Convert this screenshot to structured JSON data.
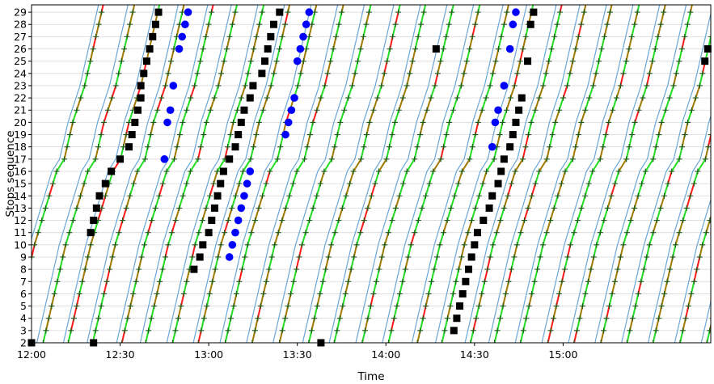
{
  "chart_data": {
    "type": "line",
    "title": "",
    "xlabel": "Time",
    "ylabel": "Stops sequence",
    "x_unit": "time of day (HH:MM)",
    "xlim": [
      "12:00",
      "15:50"
    ],
    "ylim": [
      2,
      29.6
    ],
    "x_ticks": [
      "12:00",
      "12:30",
      "13:00",
      "13:30",
      "14:00",
      "14:30",
      "15:00"
    ],
    "y_ticks": [
      2,
      3,
      4,
      5,
      6,
      7,
      8,
      9,
      10,
      11,
      12,
      13,
      14,
      15,
      16,
      17,
      18,
      19,
      20,
      21,
      22,
      23,
      24,
      25,
      26,
      27,
      28,
      29
    ],
    "grid": "horizontal",
    "legend": "none",
    "colors": {
      "planned": "#6aa6d6",
      "observed": "#22dd22",
      "delay": "#ff1a1a",
      "mixed": "#a07a00",
      "stop_mark": "#1a5a1a",
      "black_markers": "#000000",
      "blue_markers": "#0000ff"
    },
    "trip_start_times": [
      "11:53",
      "12:03",
      "12:12",
      "12:20",
      "12:30",
      "12:38",
      "12:47",
      "12:56",
      "13:05",
      "13:14",
      "13:23",
      "13:33",
      "13:42",
      "13:51",
      "14:00",
      "14:10",
      "14:18",
      "14:28",
      "14:36",
      "14:45",
      "14:54",
      "15:03",
      "15:12",
      "15:21",
      "15:30",
      "15:39",
      "15:48"
    ],
    "black_markers": [
      {
        "x": "12:00",
        "y": 2
      },
      {
        "x": "12:21",
        "y": 2
      },
      {
        "x": "13:38",
        "y": 2
      },
      {
        "x": "12:20",
        "y": 11
      },
      {
        "x": "12:21",
        "y": 12
      },
      {
        "x": "12:22",
        "y": 13
      },
      {
        "x": "12:23",
        "y": 14
      },
      {
        "x": "12:25",
        "y": 15
      },
      {
        "x": "12:27",
        "y": 16
      },
      {
        "x": "12:30",
        "y": 17
      },
      {
        "x": "12:33",
        "y": 18
      },
      {
        "x": "12:34",
        "y": 19
      },
      {
        "x": "12:35",
        "y": 20
      },
      {
        "x": "12:36",
        "y": 21
      },
      {
        "x": "12:37",
        "y": 22
      },
      {
        "x": "12:37",
        "y": 23
      },
      {
        "x": "12:38",
        "y": 24
      },
      {
        "x": "12:39",
        "y": 25
      },
      {
        "x": "12:40",
        "y": 26
      },
      {
        "x": "12:41",
        "y": 27
      },
      {
        "x": "12:42",
        "y": 28
      },
      {
        "x": "12:43",
        "y": 29
      },
      {
        "x": "12:55",
        "y": 8
      },
      {
        "x": "12:57",
        "y": 9
      },
      {
        "x": "12:58",
        "y": 10
      },
      {
        "x": "13:00",
        "y": 11
      },
      {
        "x": "13:01",
        "y": 12
      },
      {
        "x": "13:02",
        "y": 13
      },
      {
        "x": "13:03",
        "y": 14
      },
      {
        "x": "13:04",
        "y": 15
      },
      {
        "x": "13:05",
        "y": 16
      },
      {
        "x": "13:07",
        "y": 17
      },
      {
        "x": "13:09",
        "y": 18
      },
      {
        "x": "13:10",
        "y": 19
      },
      {
        "x": "13:11",
        "y": 20
      },
      {
        "x": "13:12",
        "y": 21
      },
      {
        "x": "13:14",
        "y": 22
      },
      {
        "x": "13:15",
        "y": 23
      },
      {
        "x": "13:18",
        "y": 24
      },
      {
        "x": "13:19",
        "y": 25
      },
      {
        "x": "13:20",
        "y": 26
      },
      {
        "x": "13:21",
        "y": 27
      },
      {
        "x": "13:22",
        "y": 28
      },
      {
        "x": "13:24",
        "y": 29
      },
      {
        "x": "14:17",
        "y": 26
      },
      {
        "x": "14:23",
        "y": 3
      },
      {
        "x": "14:24",
        "y": 4
      },
      {
        "x": "14:25",
        "y": 5
      },
      {
        "x": "14:26",
        "y": 6
      },
      {
        "x": "14:27",
        "y": 7
      },
      {
        "x": "14:28",
        "y": 8
      },
      {
        "x": "14:29",
        "y": 9
      },
      {
        "x": "14:30",
        "y": 10
      },
      {
        "x": "14:31",
        "y": 11
      },
      {
        "x": "14:33",
        "y": 12
      },
      {
        "x": "14:35",
        "y": 13
      },
      {
        "x": "14:36",
        "y": 14
      },
      {
        "x": "14:38",
        "y": 15
      },
      {
        "x": "14:39",
        "y": 16
      },
      {
        "x": "14:40",
        "y": 17
      },
      {
        "x": "14:42",
        "y": 18
      },
      {
        "x": "14:43",
        "y": 19
      },
      {
        "x": "14:44",
        "y": 20
      },
      {
        "x": "14:45",
        "y": 21
      },
      {
        "x": "14:46",
        "y": 22
      },
      {
        "x": "14:48",
        "y": 25
      },
      {
        "x": "14:49",
        "y": 28
      },
      {
        "x": "14:50",
        "y": 29
      },
      {
        "x": "15:48",
        "y": 25
      },
      {
        "x": "15:49",
        "y": 26
      }
    ],
    "blue_markers": [
      {
        "x": "12:45",
        "y": 17
      },
      {
        "x": "12:46",
        "y": 20
      },
      {
        "x": "12:47",
        "y": 21
      },
      {
        "x": "12:48",
        "y": 23
      },
      {
        "x": "12:50",
        "y": 26
      },
      {
        "x": "12:51",
        "y": 27
      },
      {
        "x": "12:52",
        "y": 28
      },
      {
        "x": "12:53",
        "y": 29
      },
      {
        "x": "13:07",
        "y": 9
      },
      {
        "x": "13:08",
        "y": 10
      },
      {
        "x": "13:09",
        "y": 11
      },
      {
        "x": "13:10",
        "y": 12
      },
      {
        "x": "13:11",
        "y": 13
      },
      {
        "x": "13:12",
        "y": 14
      },
      {
        "x": "13:13",
        "y": 15
      },
      {
        "x": "13:14",
        "y": 16
      },
      {
        "x": "13:26",
        "y": 19
      },
      {
        "x": "13:27",
        "y": 20
      },
      {
        "x": "13:28",
        "y": 21
      },
      {
        "x": "13:29",
        "y": 22
      },
      {
        "x": "13:30",
        "y": 25
      },
      {
        "x": "13:31",
        "y": 26
      },
      {
        "x": "13:32",
        "y": 27
      },
      {
        "x": "13:33",
        "y": 28
      },
      {
        "x": "13:34",
        "y": 29
      },
      {
        "x": "14:36",
        "y": 18
      },
      {
        "x": "14:37",
        "y": 20
      },
      {
        "x": "14:38",
        "y": 21
      },
      {
        "x": "14:40",
        "y": 23
      },
      {
        "x": "14:42",
        "y": 26
      },
      {
        "x": "14:43",
        "y": 28
      },
      {
        "x": "14:44",
        "y": 29
      }
    ]
  }
}
